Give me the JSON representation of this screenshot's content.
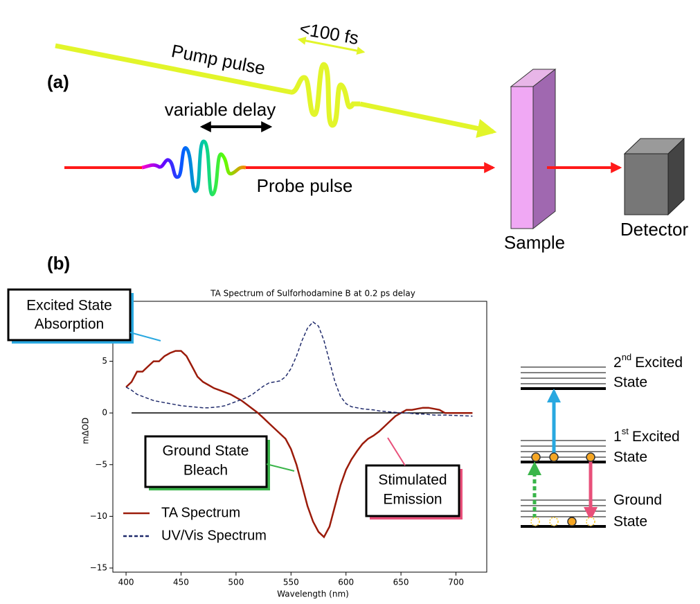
{
  "panel_a": {
    "label": "(a)",
    "pump": "Pump pulse",
    "duration": "<100 fs",
    "delay": "variable delay",
    "probe": "Probe pulse",
    "sample": "Sample",
    "detector": "Detector"
  },
  "panel_b": {
    "label": "(b)",
    "callouts": [
      {
        "lines": [
          "Excited State",
          "Absorption"
        ]
      },
      {
        "lines": [
          "Ground State",
          "Bleach"
        ]
      },
      {
        "lines": [
          "Stimulated",
          "Emission"
        ]
      }
    ],
    "energy_levels": [
      {
        "number": "2",
        "suffix": "nd",
        "lines": [
          "Excited",
          "State"
        ]
      },
      {
        "number": "1",
        "suffix": "st",
        "lines": [
          "Excited",
          "State"
        ]
      },
      {
        "lines": [
          "Ground",
          "State"
        ]
      }
    ]
  },
  "chart_data": {
    "type": "line",
    "title": "TA Spectrum of Sulforhodamine B at 0.2 ps delay",
    "x_label": "Wavelength (nm)",
    "y_label": "mΔOD",
    "x": [
      400,
      405,
      410,
      415,
      420,
      425,
      430,
      435,
      440,
      445,
      450,
      455,
      460,
      465,
      470,
      475,
      480,
      485,
      490,
      495,
      500,
      505,
      510,
      515,
      520,
      525,
      530,
      535,
      540,
      545,
      550,
      555,
      560,
      565,
      570,
      575,
      580,
      585,
      590,
      595,
      600,
      605,
      610,
      615,
      620,
      625,
      630,
      635,
      640,
      645,
      650,
      655,
      660,
      665,
      670,
      675,
      680,
      685,
      690,
      700,
      715
    ],
    "series": [
      {
        "name": "TA Spectrum",
        "color": "#9b1b0a",
        "dash": false,
        "values": [
          2.5,
          3,
          4,
          4,
          4.5,
          5,
          5,
          5.5,
          5.8,
          6,
          6,
          5.5,
          4.5,
          3.5,
          3,
          2.7,
          2.4,
          2.2,
          2,
          1.8,
          1.5,
          1.2,
          0.8,
          0.4,
          0,
          -0.5,
          -1,
          -1.5,
          -2,
          -2.5,
          -3.5,
          -5,
          -7,
          -9,
          -10.5,
          -11.5,
          -12,
          -11,
          -9,
          -7,
          -5.5,
          -4.5,
          -3.7,
          -3,
          -2.5,
          -2.2,
          -1.8,
          -1.3,
          -0.8,
          -0.3,
          0,
          0.3,
          0.3,
          0.4,
          0.5,
          0.5,
          0.4,
          0.3,
          0,
          0,
          0
        ]
      },
      {
        "name": "UV/Vis Spectrum",
        "color": "#1f2a6b",
        "dash": true,
        "values": [
          2.5,
          2.2,
          1.8,
          1.6,
          1.4,
          1.2,
          1.1,
          1,
          0.9,
          0.8,
          0.7,
          0.65,
          0.6,
          0.55,
          0.5,
          0.5,
          0.55,
          0.6,
          0.7,
          0.9,
          1.1,
          1.3,
          1.5,
          1.8,
          2.2,
          2.6,
          2.9,
          3,
          3.1,
          3.5,
          4.3,
          5.5,
          7,
          8.2,
          8.8,
          8.4,
          7,
          5,
          3,
          1.6,
          0.9,
          0.6,
          0.5,
          0.4,
          0.35,
          0.3,
          0.2,
          0.15,
          0.1,
          0.05,
          0,
          0,
          -0.05,
          -0.1,
          -0.1,
          -0.15,
          -0.2,
          -0.2,
          -0.2,
          -0.25,
          -0.3
        ]
      }
    ],
    "xlim": [
      388,
      728
    ],
    "ylim": [
      -15.4,
      10.8
    ],
    "xticks": [
      400,
      450,
      500,
      550,
      600,
      650,
      700
    ],
    "yticks": [
      5,
      0,
      -5,
      -10,
      -15
    ],
    "ytick_labels": [
      {
        "value": -5,
        "label": "−5"
      },
      {
        "value": -10,
        "label": "−10"
      },
      {
        "value": -15,
        "label": "−15"
      }
    ],
    "zero_line": true,
    "legend": "lower left"
  }
}
